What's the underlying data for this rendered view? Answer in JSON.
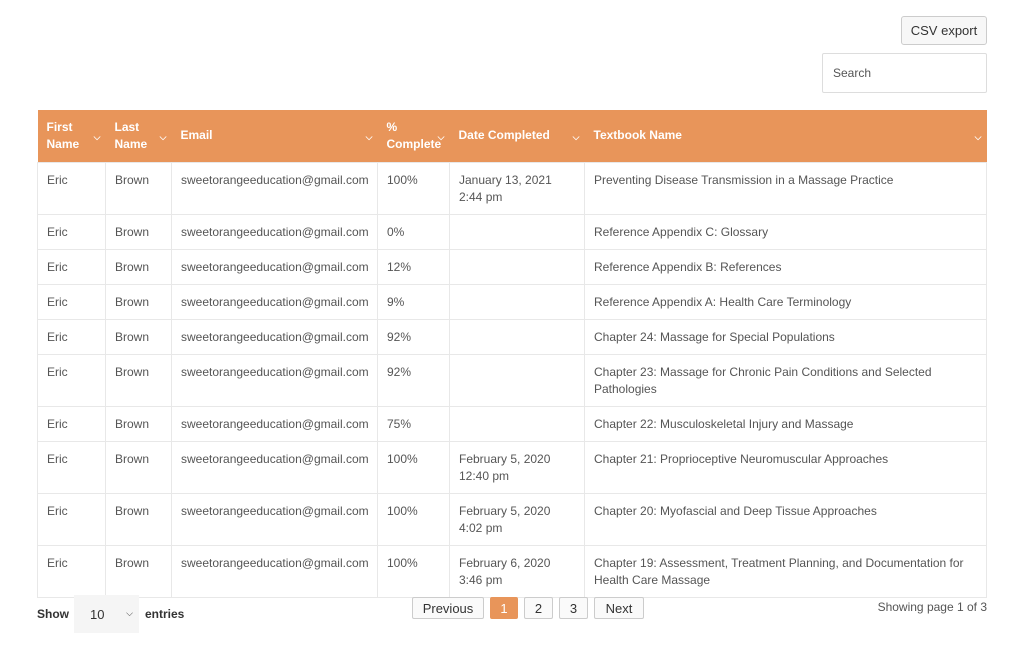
{
  "toolbar": {
    "csv_label": "CSV export",
    "search_placeholder": "Search"
  },
  "table": {
    "headers": [
      "First Name",
      "Last Name",
      "Email",
      "% Complete",
      "Date Completed",
      "Textbook Name"
    ],
    "rows": [
      [
        "Eric",
        "Brown",
        "sweetorangeeducation@gmail.com",
        "100%",
        "January 13, 2021 2:44 pm",
        "Preventing Disease Transmission in a Massage Practice"
      ],
      [
        "Eric",
        "Brown",
        "sweetorangeeducation@gmail.com",
        "0%",
        "",
        "Reference Appendix C: Glossary"
      ],
      [
        "Eric",
        "Brown",
        "sweetorangeeducation@gmail.com",
        "12%",
        "",
        "Reference Appendix B: References"
      ],
      [
        "Eric",
        "Brown",
        "sweetorangeeducation@gmail.com",
        "9%",
        "",
        "Reference Appendix A: Health Care Terminology"
      ],
      [
        "Eric",
        "Brown",
        "sweetorangeeducation@gmail.com",
        "92%",
        "",
        "Chapter 24: Massage for Special Populations"
      ],
      [
        "Eric",
        "Brown",
        "sweetorangeeducation@gmail.com",
        "92%",
        "",
        "Chapter 23: Massage for Chronic Pain Conditions and Selected Pathologies"
      ],
      [
        "Eric",
        "Brown",
        "sweetorangeeducation@gmail.com",
        "75%",
        "",
        "Chapter 22: Musculoskeletal Injury and Massage"
      ],
      [
        "Eric",
        "Brown",
        "sweetorangeeducation@gmail.com",
        "100%",
        "February 5, 2020 12:40 pm",
        "Chapter 21: Proprioceptive Neuromuscular Approaches"
      ],
      [
        "Eric",
        "Brown",
        "sweetorangeeducation@gmail.com",
        "100%",
        "February 5, 2020 4:02 pm",
        "Chapter 20: Myofascial and Deep Tissue Approaches"
      ],
      [
        "Eric",
        "Brown",
        "sweetorangeeducation@gmail.com",
        "100%",
        "February 6, 2020 3:46 pm",
        "Chapter 19: Assessment, Treatment Planning, and Documentation for Health Care Massage"
      ]
    ]
  },
  "footer": {
    "show_label": "Show",
    "page_size": "10",
    "entries_label": "entries",
    "previous": "Previous",
    "pages": [
      "1",
      "2",
      "3"
    ],
    "current_page": "1",
    "next": "Next",
    "status": "Showing page 1 of 3"
  },
  "colors": {
    "accent": "#e8955a"
  }
}
